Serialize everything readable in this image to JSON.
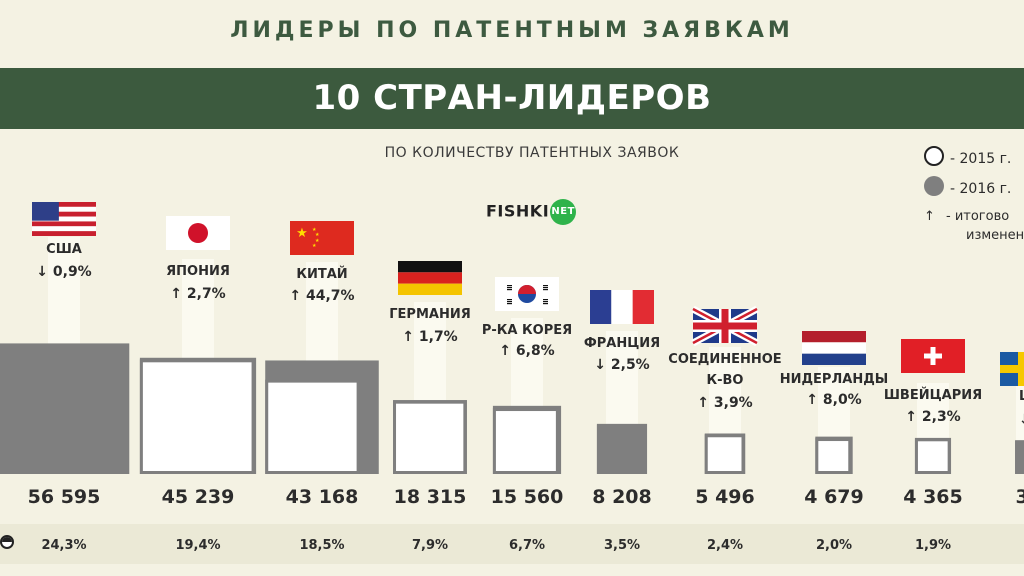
{
  "header": {
    "top_title": "ЛИДЕРЫ ПО ПАТЕНТНЫМ ЗАЯВКАМ",
    "banner_title": "10 СТРАН-ЛИДЕРОВ",
    "subtitle": "ПО КОЛИЧЕСТВУ ПАТЕНТНЫХ ЗАЯВОК"
  },
  "legend": {
    "y2015": "- 2015 г.",
    "y2016": "- 2016 г.",
    "arrow_symbol": "↑",
    "change_line1": "- итогово",
    "change_line2": "изменен"
  },
  "watermark": {
    "text": "FISHKI",
    "badge": "NET"
  },
  "colors": {
    "banner": "#3c5a3e",
    "title_green": "#3d5a40",
    "bar_2016": "#7f7f7f",
    "bar_2015": "#ffffff",
    "beam": "#fbfaf0"
  },
  "chart_data": {
    "type": "table",
    "title": "10 СТРАН-ЛИДЕРОВ",
    "subtitle": "ПО КОЛИЧЕСТВУ ПАТЕНТНЫХ ЗАЯВОК",
    "legend_placement": "top-right",
    "series": [
      {
        "name": "2015 г.",
        "shape": "hollow-square"
      },
      {
        "name": "2016 г.",
        "shape": "filled-square"
      }
    ],
    "countries": [
      {
        "name": "США",
        "flag": "us-flag-icon",
        "direction": "down",
        "change": "0,9%",
        "value_label": "56 595",
        "value": 56595,
        "share": "24,3%",
        "prev_value": 57110
      },
      {
        "name": "ЯПОНИЯ",
        "flag": "japan-flag-icon",
        "direction": "up",
        "change": "2,7%",
        "value_label": "45 239",
        "value": 45239,
        "share": "19,4%",
        "prev_value": 44050
      },
      {
        "name": "КИТАЙ",
        "flag": "china-flag-icon",
        "direction": "up",
        "change": "44,7%",
        "value_label": "43 168",
        "value": 43168,
        "share": "18,5%",
        "prev_value": 29830
      },
      {
        "name": "ГЕРМАНИЯ",
        "flag": "germany-flag-icon",
        "direction": "up",
        "change": "1,7%",
        "value_label": "18 315",
        "value": 18315,
        "share": "7,9%",
        "prev_value": 18010
      },
      {
        "name": "Р-КА КОРЕЯ",
        "flag": "korea-flag-icon",
        "direction": "up",
        "change": "6,8%",
        "value_label": "15 560",
        "value": 15560,
        "share": "6,7%",
        "prev_value": 14570
      },
      {
        "name": "ФРАНЦИЯ",
        "flag": "france-flag-icon",
        "direction": "down",
        "change": "2,5%",
        "value_label": "8 208",
        "value": 8208,
        "share": "3,5%",
        "prev_value": 8420
      },
      {
        "name": "СОЕДИНЕННОЕ К-ВО",
        "flag": "uk-flag-icon",
        "direction": "up",
        "change": "3,9%",
        "value_label": "5 496",
        "value": 5496,
        "share": "2,4%",
        "prev_value": 5290
      },
      {
        "name": "НИДЕРЛАНДЫ",
        "flag": "netherlands-flag-icon",
        "direction": "up",
        "change": "8,0%",
        "value_label": "4 679",
        "value": 4679,
        "share": "2,0%",
        "prev_value": 4330
      },
      {
        "name": "ШВЕЙЦАРИЯ",
        "flag": "switzerland-flag-icon",
        "direction": "up",
        "change": "2,3%",
        "value_label": "4 365",
        "value": 4365,
        "share": "1,9%",
        "prev_value": 4270
      },
      {
        "name": "ШВ",
        "flag": "sweden-flag-icon",
        "direction": "down",
        "change": "3",
        "value_label": "3 7",
        "value": 3700,
        "share": "1,",
        "prev_value": 3830
      }
    ]
  }
}
